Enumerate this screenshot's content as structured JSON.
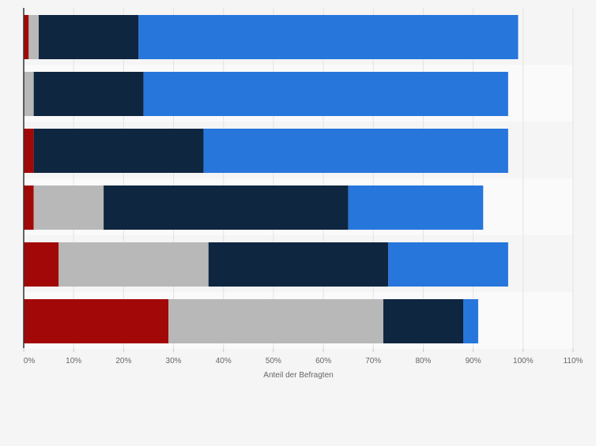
{
  "chart_data": {
    "type": "bar",
    "orientation": "horizontal",
    "stacked": true,
    "title": "",
    "xlabel": "Anteil der Befragten",
    "ylabel": "",
    "xlim": [
      0,
      110
    ],
    "x_ticks": [
      0,
      10,
      20,
      30,
      40,
      50,
      60,
      70,
      80,
      90,
      100,
      110
    ],
    "x_tick_labels": [
      "0%",
      "10%",
      "20%",
      "30%",
      "40%",
      "50%",
      "60%",
      "70%",
      "80%",
      "90%",
      "100%",
      "110%"
    ],
    "grid": true,
    "legend": "none",
    "categories": [
      "",
      "",
      "",
      "",
      "",
      ""
    ],
    "series": [
      {
        "color": "#a30808",
        "values": [
          1,
          0,
          2,
          2,
          7,
          29
        ]
      },
      {
        "color": "#b8b8b8",
        "values": [
          2,
          2,
          0,
          14,
          30,
          43
        ]
      },
      {
        "color": "#0f2640",
        "values": [
          20,
          22,
          34,
          49,
          36,
          16
        ]
      },
      {
        "color": "#2776dc",
        "values": [
          76,
          73,
          61,
          27,
          24,
          3
        ]
      }
    ]
  },
  "colors": {
    "background": "#f5f5f5",
    "band": "#fafafa",
    "grid": "#e3e3e3",
    "axis": "#333333",
    "tick_text": "#666666"
  }
}
